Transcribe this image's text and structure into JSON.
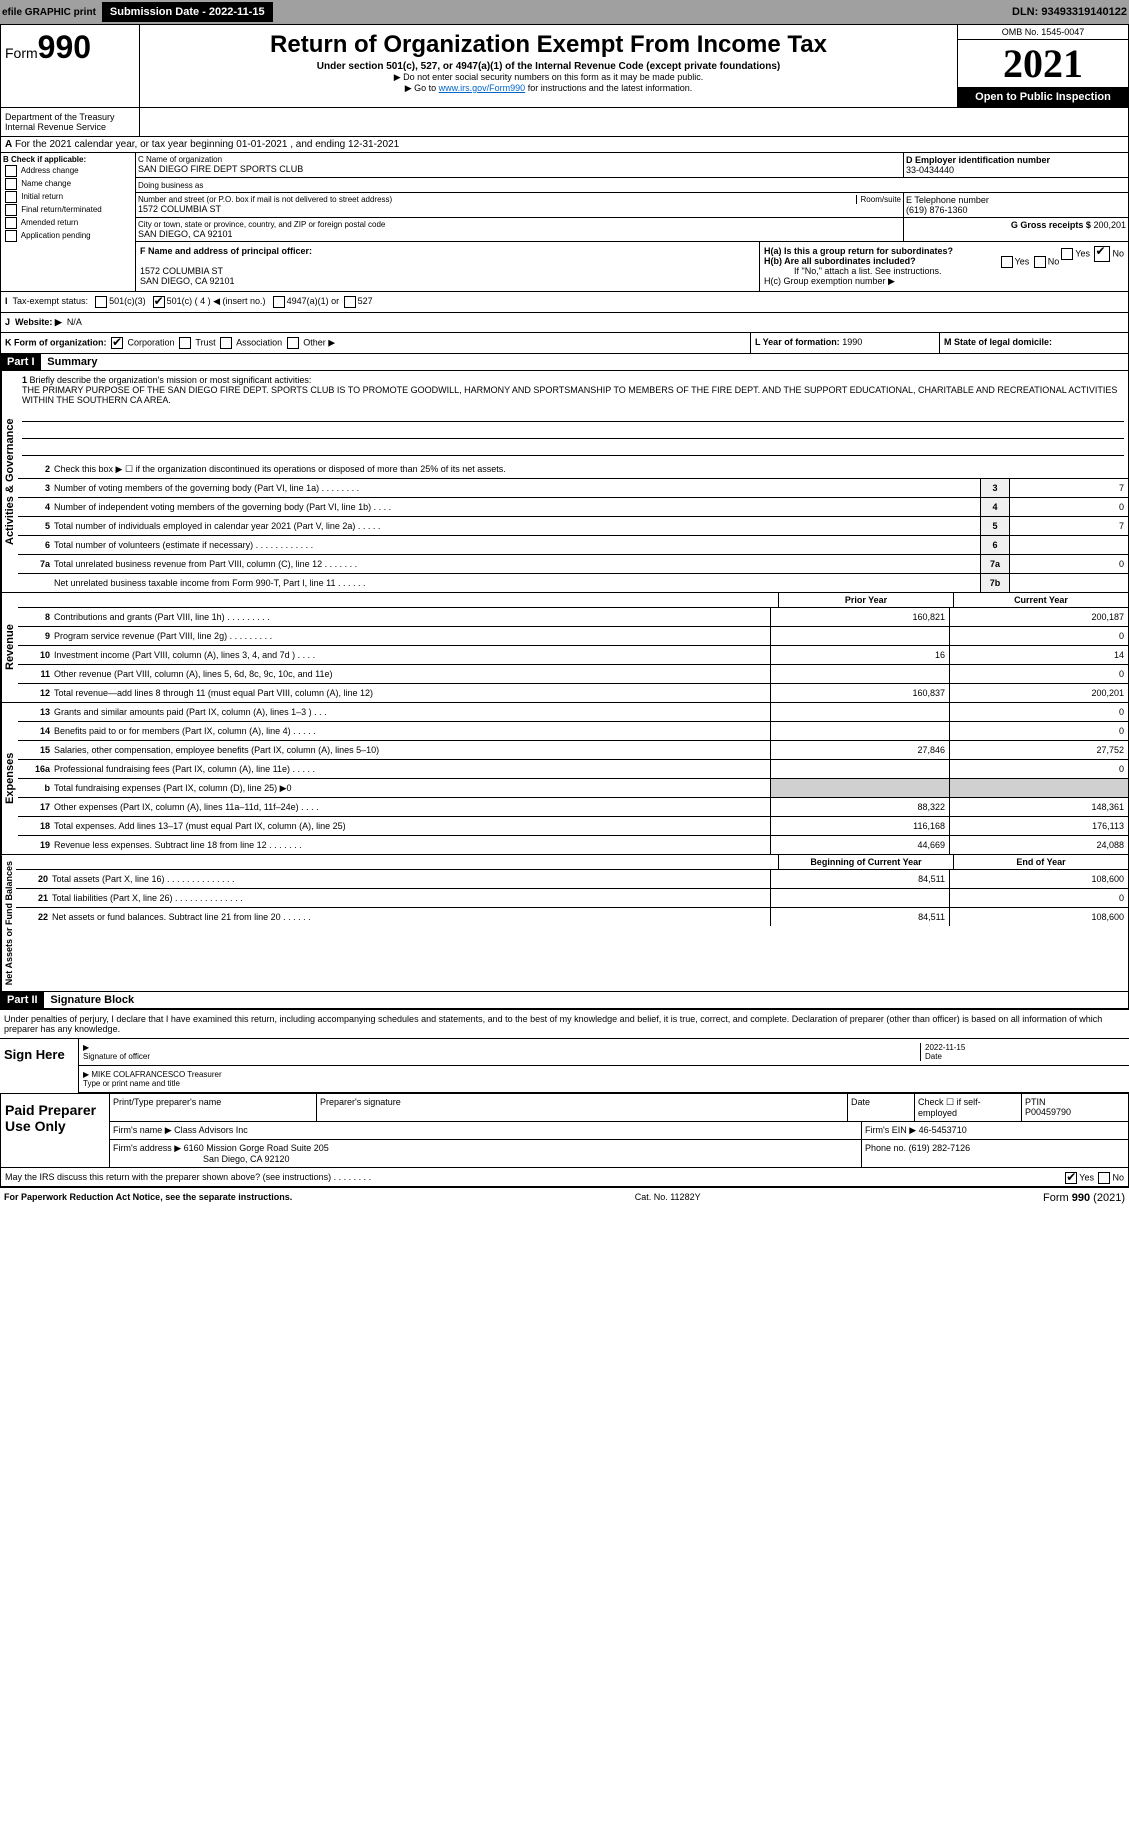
{
  "topbar": {
    "efile": "efile GRAPHIC print",
    "subdate_lbl": "Submission Date - 2022-11-15",
    "dln": "DLN: 93493319140122"
  },
  "header": {
    "form": "Form",
    "num": "990",
    "dept": "Department of the Treasury\nInternal Revenue Service",
    "title": "Return of Organization Exempt From Income Tax",
    "sub": "Under section 501(c), 527, or 4947(a)(1) of the Internal Revenue Code (except private foundations)",
    "note1": "▶ Do not enter social security numbers on this form as it may be made public.",
    "note2": "▶ Go to www.irs.gov/Form990 for instructions and the latest information.",
    "link": "www.irs.gov/Form990",
    "omb": "OMB No. 1545-0047",
    "year": "2021",
    "open": "Open to Public Inspection"
  },
  "aline": "For the 2021 calendar year, or tax year beginning 01-01-2021    , and ending 12-31-2021",
  "b": {
    "hdr": "B Check if applicable:",
    "items": [
      "Address change",
      "Name change",
      "Initial return",
      "Final return/terminated",
      "Amended return",
      "Application pending"
    ]
  },
  "c": {
    "lbl": "C Name of organization",
    "name": "SAN DIEGO FIRE DEPT SPORTS CLUB",
    "dba_lbl": "Doing business as",
    "dba": "",
    "street_lbl": "Number and street (or P.O. box if mail is not delivered to street address)",
    "room_lbl": "Room/suite",
    "street": "1572 COLUMBIA ST",
    "city_lbl": "City or town, state or province, country, and ZIP or foreign postal code",
    "city": "SAN DIEGO, CA  92101"
  },
  "d": {
    "lbl": "D Employer identification number",
    "ein": "33-0434440"
  },
  "e": {
    "lbl": "E Telephone number",
    "tel": "(619) 876-1360"
  },
  "g": {
    "lbl": "G Gross receipts $",
    "val": "200,201"
  },
  "f": {
    "lbl": "F  Name and address of principal officer:",
    "addr1": "1572 COLUMBIA ST",
    "addr2": "SAN DIEGO, CA  92101"
  },
  "h": {
    "a": "H(a)  Is this a group return for subordinates?",
    "b": "H(b)  Are all subordinates included?",
    "bnote": "If \"No,\" attach a list. See instructions.",
    "c": "H(c)  Group exemption number ▶",
    "yes": "Yes",
    "no": "No"
  },
  "i": {
    "lbl": "Tax-exempt status:",
    "o1": "501(c)(3)",
    "o2": "501(c) ( 4 ) ◀ (insert no.)",
    "o3": "4947(a)(1) or",
    "o4": "527"
  },
  "j": {
    "lbl": "Website: ▶",
    "val": "N/A"
  },
  "k": {
    "lbl": "K Form of organization:",
    "o1": "Corporation",
    "o2": "Trust",
    "o3": "Association",
    "o4": "Other ▶"
  },
  "l": {
    "lbl": "L Year of formation:",
    "val": "1990"
  },
  "m": {
    "lbl": "M State of legal domicile:",
    "val": ""
  },
  "part1": {
    "hdr": "Part I",
    "title": "Summary"
  },
  "mission": {
    "n": "1",
    "lbl": "Briefly describe the organization's mission or most significant activities:",
    "txt": "THE PRIMARY PURPOSE OF THE SAN DIEGO FIRE DEPT. SPORTS CLUB IS TO PROMOTE GOODWILL, HARMONY AND SPORTSMANSHIP TO MEMBERS OF THE FIRE DEPT. AND THE SUPPORT EDUCATIONAL, CHARITABLE AND RECREATIONAL ACTIVITIES WITHIN THE SOUTHERN CA AREA."
  },
  "ag": [
    {
      "n": "2",
      "t": "Check this box ▶ ☐  if the organization discontinued its operations or disposed of more than 25% of its net assets."
    },
    {
      "n": "3",
      "t": "Number of voting members of the governing body (Part VI, line 1a)   .    .    .    .    .    .    .    .",
      "ln": "3",
      "v": "7"
    },
    {
      "n": "4",
      "t": "Number of independent voting members of the governing body (Part VI, line 1b)   .    .    .    .",
      "ln": "4",
      "v": "0"
    },
    {
      "n": "5",
      "t": "Total number of individuals employed in calendar year 2021 (Part V, line 2a)   .    .    .    .    .",
      "ln": "5",
      "v": "7"
    },
    {
      "n": "6",
      "t": "Total number of volunteers (estimate if necessary)   .    .    .    .    .    .    .    .    .    .    .    .",
      "ln": "6",
      "v": ""
    },
    {
      "n": "7a",
      "t": "Total unrelated business revenue from Part VIII, column (C), line 12   .    .    .    .    .    .    .",
      "ln": "7a",
      "v": "0"
    },
    {
      "n": "",
      "t": "Net unrelated business taxable income from Form 990-T, Part I, line 11   .    .    .    .    .    .",
      "ln": "7b",
      "v": ""
    }
  ],
  "colhdr": {
    "prior": "Prior Year",
    "current": "Current Year"
  },
  "revenue": [
    {
      "n": "8",
      "t": "Contributions and grants (Part VIII, line 1h)   .    .    .    .    .    .    .    .    .",
      "p": "160,821",
      "c": "200,187"
    },
    {
      "n": "9",
      "t": "Program service revenue (Part VIII, line 2g)   .    .    .    .    .    .    .    .    .",
      "p": "",
      "c": "0"
    },
    {
      "n": "10",
      "t": "Investment income (Part VIII, column (A), lines 3, 4, and 7d )   .    .    .    .",
      "p": "16",
      "c": "14"
    },
    {
      "n": "11",
      "t": "Other revenue (Part VIII, column (A), lines 5, 6d, 8c, 9c, 10c, and 11e)",
      "p": "",
      "c": "0"
    },
    {
      "n": "12",
      "t": "Total revenue—add lines 8 through 11 (must equal Part VIII, column (A), line 12)",
      "p": "160,837",
      "c": "200,201"
    }
  ],
  "expenses": [
    {
      "n": "13",
      "t": "Grants and similar amounts paid (Part IX, column (A), lines 1–3 )   .    .    .",
      "p": "",
      "c": "0"
    },
    {
      "n": "14",
      "t": "Benefits paid to or for members (Part IX, column (A), line 4)   .    .    .    .    .",
      "p": "",
      "c": "0"
    },
    {
      "n": "15",
      "t": "Salaries, other compensation, employee benefits (Part IX, column (A), lines 5–10)",
      "p": "27,846",
      "c": "27,752"
    },
    {
      "n": "16a",
      "t": "Professional fundraising fees (Part IX, column (A), line 11e)   .    .    .    .    .",
      "p": "",
      "c": "0"
    },
    {
      "n": "b",
      "t": "Total fundraising expenses (Part IX, column (D), line 25) ▶0",
      "p": "GRAY",
      "c": "GRAY"
    },
    {
      "n": "17",
      "t": "Other expenses (Part IX, column (A), lines 11a–11d, 11f–24e)   .    .    .    .",
      "p": "88,322",
      "c": "148,361"
    },
    {
      "n": "18",
      "t": "Total expenses. Add lines 13–17 (must equal Part IX, column (A), line 25)",
      "p": "116,168",
      "c": "176,113"
    },
    {
      "n": "19",
      "t": "Revenue less expenses. Subtract line 18 from line 12   .    .    .    .    .    .    .",
      "p": "44,669",
      "c": "24,088"
    }
  ],
  "nethdr": {
    "b": "Beginning of Current Year",
    "e": "End of Year"
  },
  "net": [
    {
      "n": "20",
      "t": "Total assets (Part X, line 16)   .    .    .    .    .    .    .    .    .    .    .    .    .    .",
      "p": "84,511",
      "c": "108,600"
    },
    {
      "n": "21",
      "t": "Total liabilities (Part X, line 26)   .    .    .    .    .    .    .    .    .    .    .    .    .    .",
      "p": "",
      "c": "0"
    },
    {
      "n": "22",
      "t": "Net assets or fund balances. Subtract line 21 from line 20   .    .    .    .    .    .",
      "p": "84,511",
      "c": "108,600"
    }
  ],
  "part2": {
    "hdr": "Part II",
    "title": "Signature Block"
  },
  "sigdecl": "Under penalties of perjury, I declare that I have examined this return, including accompanying schedules and statements, and to the best of my knowledge and belief, it is true, correct, and complete. Declaration of preparer (other than officer) is based on all information of which preparer has any knowledge.",
  "sign": {
    "lbl": "Sign Here",
    "sig": "Signature of officer",
    "date": "Date",
    "dateval": "2022-11-15",
    "name": "MIKE COLAFRANCESCO  Treasurer",
    "type": "Type or print name and title"
  },
  "paid": {
    "lbl": "Paid Preparer Use Only",
    "h1": "Print/Type preparer's name",
    "h2": "Preparer's signature",
    "h3": "Date",
    "h4": "Check ☐ if self-employed",
    "h5": "PTIN",
    "ptin": "P00459790",
    "firm_lbl": "Firm's name    ▶",
    "firm": "Class Advisors Inc",
    "ein_lbl": "Firm's EIN ▶",
    "ein": "46-5453710",
    "addr_lbl": "Firm's address ▶",
    "addr1": "6160 Mission Gorge Road Suite 205",
    "addr2": "San Diego, CA  92120",
    "phone_lbl": "Phone no.",
    "phone": "(619) 282-7126"
  },
  "may": "May the IRS discuss this return with the preparer shown above? (see instructions)   .    .    .    .    .    .    .    .",
  "footer": {
    "l": "For Paperwork Reduction Act Notice, see the separate instructions.",
    "m": "Cat. No. 11282Y",
    "r": "Form 990 (2021)"
  },
  "vtabs": {
    "ag": "Activities & Governance",
    "rev": "Revenue",
    "exp": "Expenses",
    "net": "Net Assets or Fund Balances"
  }
}
